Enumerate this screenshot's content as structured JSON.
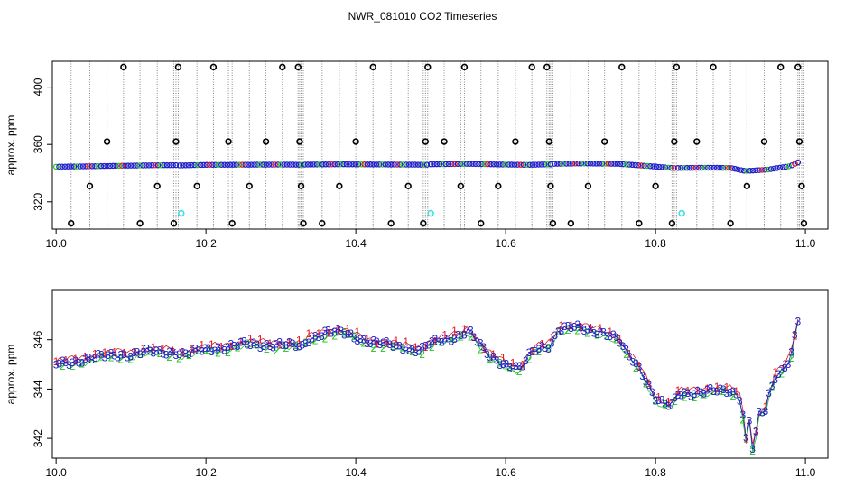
{
  "figure": {
    "title": "NWR_081010  CO2 Timeseries"
  },
  "colors": {
    "axis": "#000000",
    "series1": "#e31a1c",
    "series2": "#22c322",
    "series3": "#1f1fc8",
    "spike_marker": "#000000",
    "cyan_marker": "#40e0e0",
    "drop_line": "#8a8a8a"
  },
  "chart_data": [
    {
      "type": "scatter",
      "name": "top-panel",
      "ylabel": "approx. ppm",
      "xlabel": "",
      "xlim": [
        9.995,
        11.03
      ],
      "ylim": [
        301,
        418
      ],
      "x_ticks": [
        10.0,
        10.2,
        10.4,
        10.6,
        10.8,
        11.0
      ],
      "x_tick_labels": [
        "10.0",
        "10.2",
        "10.4",
        "10.6",
        "10.8",
        "11.0"
      ],
      "y_ticks": [
        320,
        360,
        400
      ],
      "y_tick_labels": [
        "320",
        "360",
        "400"
      ],
      "baseline_segments": [
        {
          "x": [
            10.0,
            10.045,
            10.09,
            10.13,
            10.16
          ],
          "y": [
            344.5,
            344.8,
            345.2,
            345.5,
            345.6
          ]
        },
        {
          "x": [
            10.165,
            10.2,
            10.25,
            10.3,
            10.328
          ],
          "y": [
            345.4,
            345.8,
            345.9,
            346.0,
            345.9
          ]
        },
        {
          "x": [
            10.332,
            10.38,
            10.42,
            10.46,
            10.495
          ],
          "y": [
            346.0,
            346.2,
            346.1,
            346.0,
            345.9
          ]
        },
        {
          "x": [
            10.5,
            10.55,
            10.6,
            10.63,
            10.66
          ],
          "y": [
            346.2,
            346.5,
            346.0,
            345.8,
            346.2
          ]
        },
        {
          "x": [
            10.665,
            10.7,
            10.75,
            10.79,
            10.825
          ],
          "y": [
            346.5,
            346.8,
            346.5,
            345.0,
            343.5
          ]
        },
        {
          "x": [
            10.83,
            10.87,
            10.9,
            10.92,
            10.95,
            10.98,
            10.99
          ],
          "y": [
            343.6,
            343.8,
            343.7,
            341.5,
            342.5,
            345.0,
            347.5
          ]
        }
      ],
      "spikes": [
        {
          "x": 10.02,
          "y": 305
        },
        {
          "x": 10.045,
          "y": 331
        },
        {
          "x": 10.068,
          "y": 362
        },
        {
          "x": 10.09,
          "y": 414
        },
        {
          "x": 10.112,
          "y": 305
        },
        {
          "x": 10.135,
          "y": 331
        },
        {
          "x": 10.157,
          "y": 305
        },
        {
          "x": 10.16,
          "y": 362
        },
        {
          "x": 10.163,
          "y": 414
        },
        {
          "x": 10.188,
          "y": 331
        },
        {
          "x": 10.21,
          "y": 414
        },
        {
          "x": 10.23,
          "y": 362
        },
        {
          "x": 10.235,
          "y": 305
        },
        {
          "x": 10.258,
          "y": 331
        },
        {
          "x": 10.28,
          "y": 362
        },
        {
          "x": 10.302,
          "y": 414
        },
        {
          "x": 10.323,
          "y": 414
        },
        {
          "x": 10.325,
          "y": 362
        },
        {
          "x": 10.327,
          "y": 331
        },
        {
          "x": 10.33,
          "y": 305
        },
        {
          "x": 10.355,
          "y": 305
        },
        {
          "x": 10.378,
          "y": 331
        },
        {
          "x": 10.4,
          "y": 362
        },
        {
          "x": 10.423,
          "y": 414
        },
        {
          "x": 10.447,
          "y": 305
        },
        {
          "x": 10.47,
          "y": 331
        },
        {
          "x": 10.49,
          "y": 305
        },
        {
          "x": 10.493,
          "y": 362
        },
        {
          "x": 10.496,
          "y": 414
        },
        {
          "x": 10.518,
          "y": 362
        },
        {
          "x": 10.54,
          "y": 331
        },
        {
          "x": 10.545,
          "y": 414
        },
        {
          "x": 10.567,
          "y": 305
        },
        {
          "x": 10.59,
          "y": 331
        },
        {
          "x": 10.613,
          "y": 362
        },
        {
          "x": 10.635,
          "y": 414
        },
        {
          "x": 10.655,
          "y": 414
        },
        {
          "x": 10.658,
          "y": 362
        },
        {
          "x": 10.66,
          "y": 331
        },
        {
          "x": 10.663,
          "y": 305
        },
        {
          "x": 10.687,
          "y": 305
        },
        {
          "x": 10.71,
          "y": 331
        },
        {
          "x": 10.732,
          "y": 362
        },
        {
          "x": 10.755,
          "y": 414
        },
        {
          "x": 10.778,
          "y": 305
        },
        {
          "x": 10.8,
          "y": 331
        },
        {
          "x": 10.822,
          "y": 305
        },
        {
          "x": 10.825,
          "y": 362
        },
        {
          "x": 10.828,
          "y": 414
        },
        {
          "x": 10.855,
          "y": 362
        },
        {
          "x": 10.877,
          "y": 414
        },
        {
          "x": 10.9,
          "y": 305
        },
        {
          "x": 10.922,
          "y": 331
        },
        {
          "x": 10.945,
          "y": 362
        },
        {
          "x": 10.967,
          "y": 414
        },
        {
          "x": 10.99,
          "y": 414
        },
        {
          "x": 10.992,
          "y": 362
        },
        {
          "x": 10.995,
          "y": 331
        },
        {
          "x": 10.998,
          "y": 305
        }
      ],
      "cyan_points": [
        {
          "x": 10.167,
          "y": 312
        },
        {
          "x": 10.5,
          "y": 312
        },
        {
          "x": 10.835,
          "y": 312
        }
      ]
    },
    {
      "type": "scatter",
      "name": "bottom-panel",
      "ylabel": "approx. ppm",
      "xlabel": "",
      "xlim": [
        9.995,
        11.03
      ],
      "ylim": [
        341.2,
        348.0
      ],
      "x_ticks": [
        10.0,
        10.2,
        10.4,
        10.6,
        10.8,
        11.0
      ],
      "x_tick_labels": [
        "10.0",
        "10.2",
        "10.4",
        "10.6",
        "10.8",
        "11.0"
      ],
      "y_ticks": [
        342,
        344,
        346
      ],
      "y_tick_labels": [
        "342",
        "344",
        "346"
      ],
      "series_markers": [
        "1",
        "2",
        "3"
      ],
      "gap_after": [
        10.16,
        10.33,
        10.49
      ],
      "profile": {
        "x": [
          10.0,
          10.02,
          10.04,
          10.06,
          10.08,
          10.1,
          10.12,
          10.14,
          10.16,
          10.17,
          10.2,
          10.25,
          10.3,
          10.33,
          10.335,
          10.36,
          10.38,
          10.4,
          10.42,
          10.44,
          10.46,
          10.48,
          10.49,
          10.495,
          10.52,
          10.54,
          10.55,
          10.56,
          10.57,
          10.58,
          10.6,
          10.61,
          10.62,
          10.63,
          10.64,
          10.66,
          10.67,
          10.69,
          10.71,
          10.73,
          10.75,
          10.76,
          10.78,
          10.79,
          10.8,
          10.81,
          10.82,
          10.825,
          10.83,
          10.86,
          10.9,
          10.91,
          10.915,
          10.92,
          10.925,
          10.93,
          10.94,
          10.945,
          10.95,
          10.96,
          10.97,
          10.98,
          10.99
        ],
        "y": [
          345.0,
          345.1,
          345.2,
          345.3,
          345.4,
          345.4,
          345.5,
          345.5,
          345.5,
          345.4,
          345.6,
          345.8,
          345.8,
          345.7,
          346.0,
          346.3,
          346.3,
          346.1,
          345.9,
          345.8,
          345.7,
          345.6,
          345.6,
          345.8,
          346.0,
          346.2,
          346.4,
          346.0,
          345.6,
          345.3,
          345.0,
          344.9,
          344.8,
          345.3,
          345.6,
          345.8,
          346.4,
          346.5,
          346.4,
          346.3,
          346.0,
          345.5,
          344.8,
          344.2,
          343.6,
          343.4,
          343.3,
          343.5,
          343.8,
          343.9,
          343.9,
          343.8,
          343.5,
          341.8,
          342.8,
          341.5,
          343.3,
          342.8,
          343.6,
          344.5,
          344.8,
          345.3,
          346.8
        ]
      }
    }
  ]
}
